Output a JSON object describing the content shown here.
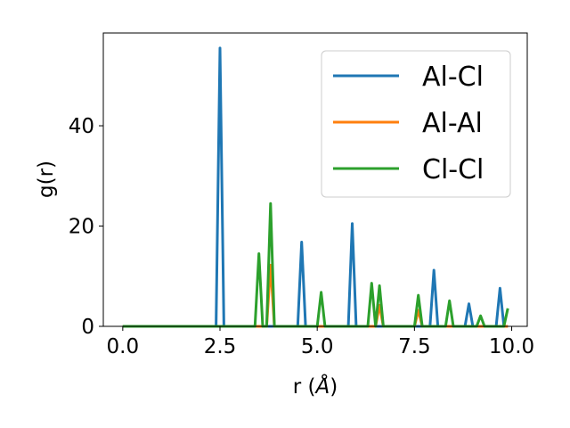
{
  "chart_data": {
    "type": "line",
    "xlabel_text": "r (",
    "xlabel_unit": "Å",
    "xlabel_close": ")",
    "ylabel": "g(r)",
    "xlim": [
      -0.5,
      10.4
    ],
    "ylim": [
      0,
      58.5
    ],
    "xticks": [
      0.0,
      2.5,
      5.0,
      7.5,
      10.0
    ],
    "xtick_labels": [
      "0.0",
      "2.5",
      "5.0",
      "7.5",
      "10.0"
    ],
    "yticks": [
      0,
      20,
      40
    ],
    "ytick_labels": [
      "0",
      "20",
      "40"
    ],
    "grid": false,
    "legend_position": "upper right",
    "series": [
      {
        "name": "Al-Cl",
        "color": "#1f77b4",
        "x": [
          0.0,
          2.4,
          2.5,
          2.6,
          4.5,
          4.6,
          4.7,
          5.8,
          5.9,
          6.0,
          7.9,
          8.0,
          8.1,
          8.8,
          8.9,
          9.0,
          9.6,
          9.7,
          9.8,
          9.9
        ],
        "y": [
          0,
          0,
          55.5,
          0,
          0,
          16.8,
          0,
          0,
          20.5,
          0,
          0,
          11.2,
          0,
          0,
          4.5,
          0,
          0,
          7.6,
          0,
          0
        ]
      },
      {
        "name": "Al-Al",
        "color": "#ff7f0e",
        "x": [
          0.0,
          3.7,
          3.8,
          3.9,
          6.5,
          6.6,
          6.7,
          7.5,
          7.6,
          7.7,
          9.9
        ],
        "y": [
          0,
          0,
          12.2,
          0,
          0,
          4.2,
          0,
          0,
          3.2,
          0,
          0
        ]
      },
      {
        "name": "Cl-Cl",
        "color": "#2ca02c",
        "x": [
          0.0,
          3.4,
          3.5,
          3.6,
          3.7,
          3.8,
          3.9,
          5.0,
          5.1,
          5.2,
          6.3,
          6.4,
          6.5,
          6.6,
          6.7,
          7.5,
          7.6,
          7.7,
          8.3,
          8.4,
          8.5,
          9.1,
          9.2,
          9.3,
          9.8,
          9.9
        ],
        "y": [
          0,
          0,
          14.5,
          0,
          0,
          24.5,
          0,
          0,
          6.8,
          0,
          0,
          8.6,
          0,
          8.1,
          0,
          0,
          6.2,
          0,
          0,
          5.1,
          0,
          0,
          2.1,
          0,
          0,
          3.6
        ]
      }
    ]
  }
}
